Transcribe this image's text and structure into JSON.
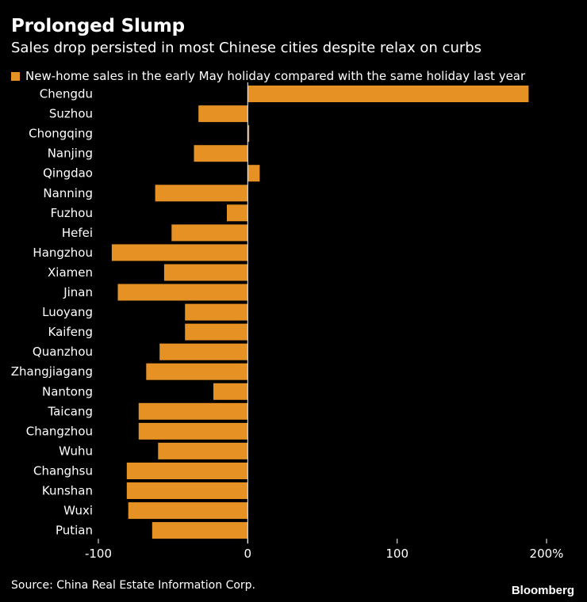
{
  "title": "Prolonged Slump",
  "subtitle": "Sales drop persisted in most Chinese cities despite relax on curbs",
  "source": "Source: China Real Estate Information Corp.",
  "brand": "Bloomberg",
  "colors": {
    "bar": "#e59124",
    "background": "#000000",
    "text": "#ffffff",
    "axis": "#ffffff"
  },
  "chart_data": {
    "type": "bar",
    "orientation": "horizontal",
    "categories": [
      "Chengdu",
      "Suzhou",
      "Chongqing",
      "Nanjing",
      "Qingdao",
      "Nanning",
      "Fuzhou",
      "Hefei",
      "Hangzhou",
      "Xiamen",
      "Jinan",
      "Luoyang",
      "Kaifeng",
      "Quanzhou",
      "Zhangjiagang",
      "Nantong",
      "Taicang",
      "Changzhou",
      "Wuhu",
      "Changhsu",
      "Kunshan",
      "Wuxi",
      "Putian"
    ],
    "series": [
      {
        "name": "New-home sales in the early May holiday compared with the same holiday last year",
        "values": [
          188,
          -33,
          1,
          -36,
          8,
          -62,
          -14,
          -51,
          -91,
          -56,
          -87,
          -42,
          -42,
          -59,
          -68,
          -23,
          -73,
          -73,
          -60,
          -81,
          -81,
          -80,
          -64
        ]
      }
    ],
    "xlim": [
      -100,
      200
    ],
    "xticks": [
      -100,
      0,
      100,
      200
    ],
    "xtick_labels": [
      "-100",
      "0",
      "100",
      "200%"
    ],
    "legend": "top-left"
  }
}
